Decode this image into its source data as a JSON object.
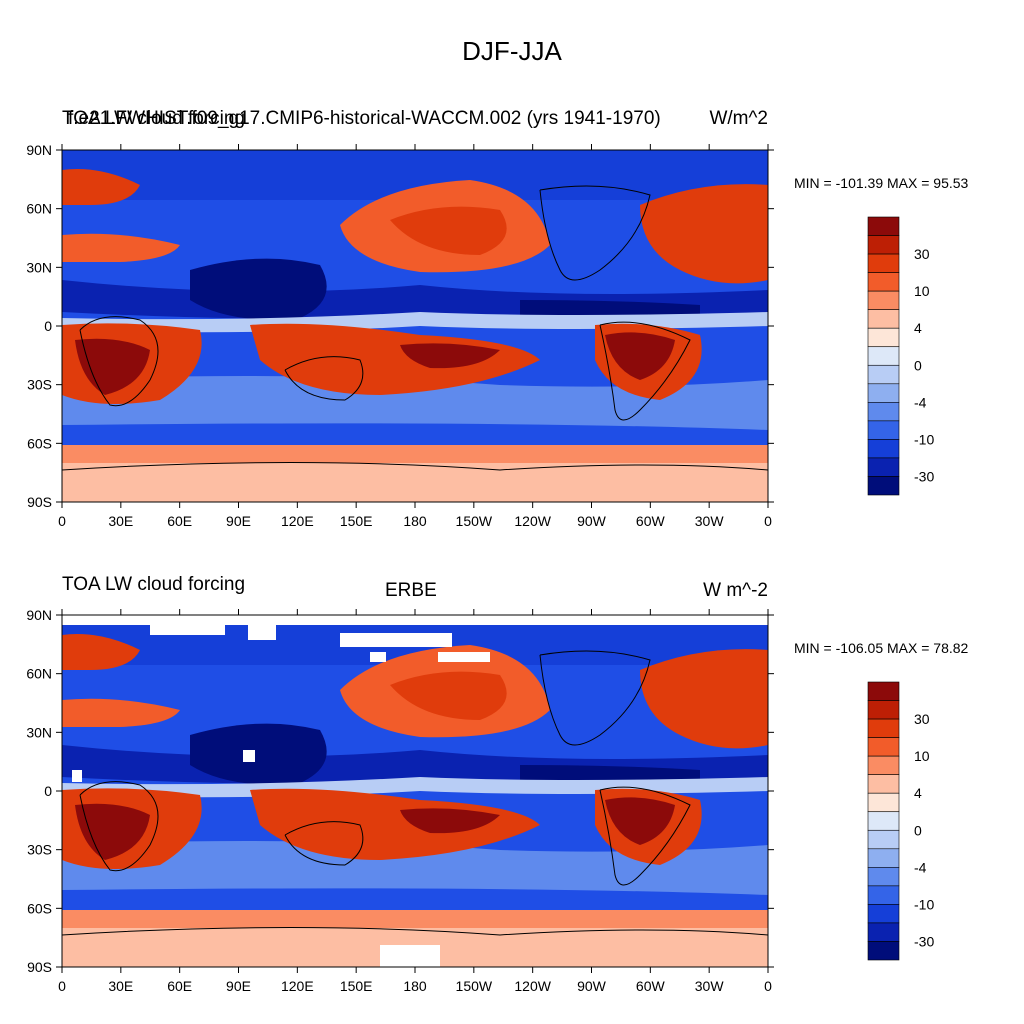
{
  "page": {
    "title": "DJF-JJA"
  },
  "panels": [
    {
      "left_title_a": "TOA LW cloud forcing",
      "left_title_b": "f.e21.FWHIST.f09_g17.CMIP6-historical-WACCM.002 (yrs 1941-1970)",
      "center_title": "",
      "right_title": "W/m^2",
      "stats": "MIN = -101.39 MAX =  95.53",
      "lat_labels": [
        "90N",
        "60N",
        "30N",
        "0",
        "30S",
        "60S",
        "90S"
      ],
      "lon_labels": [
        "0",
        "30E",
        "60E",
        "90E",
        "120E",
        "150E",
        "180",
        "150W",
        "120W",
        "90W",
        "60W",
        "30W",
        "0"
      ]
    },
    {
      "left_title_a": "TOA LW cloud forcing",
      "left_title_b": "",
      "center_title": "ERBE",
      "right_title": "W m^-2",
      "stats": "MIN = -106.05 MAX =  78.82",
      "lat_labels": [
        "90N",
        "60N",
        "30N",
        "0",
        "30S",
        "60S",
        "90S"
      ],
      "lon_labels": [
        "0",
        "30E",
        "60E",
        "90E",
        "120E",
        "150E",
        "180",
        "150W",
        "120W",
        "90W",
        "60W",
        "30W",
        "0"
      ]
    }
  ],
  "colorbar": {
    "colors": [
      "#8c0a0a",
      "#bd1f05",
      "#e03c0c",
      "#f25c2a",
      "#fa8c63",
      "#fdbea3",
      "#fde6d8",
      "#dde8f8",
      "#b8cdf5",
      "#8eaff0",
      "#5f8aed",
      "#3464e8",
      "#153fd8",
      "#0a22b0",
      "#000d7a"
    ],
    "labels": [
      "30",
      "10",
      "4",
      "0",
      "-4",
      "-10",
      "-30"
    ]
  }
}
